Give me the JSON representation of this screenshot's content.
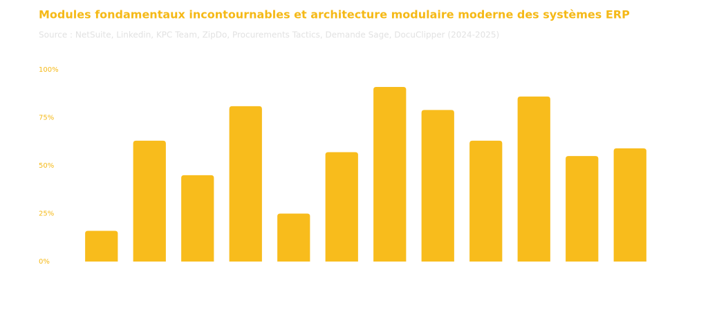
{
  "chart_data": {
    "type": "bar",
    "title": "Modules fondamentaux incontournables et architecture modulaire moderne des systèmes ERP",
    "subtitle": "Source : NetSuite, Linkedin, KPC Team, ZipDo, Procurements Tactics, Demande Sage, DocuClipper (2024-2025)",
    "categories": [
      null,
      null,
      null,
      null,
      null,
      null,
      null,
      null,
      null,
      null,
      null,
      null
    ],
    "values": [
      16,
      63,
      45,
      81,
      25,
      57,
      91,
      79,
      63,
      86,
      55,
      59
    ],
    "color": "#f8bc1c",
    "ylim": [
      0,
      100
    ],
    "yticks": [
      {
        "value": 0,
        "label": "0%"
      },
      {
        "value": 25,
        "label": "25%"
      },
      {
        "value": 50,
        "label": "50%"
      },
      {
        "value": 75,
        "label": "75%"
      },
      {
        "value": 100,
        "label": "100%"
      }
    ],
    "grid": false
  }
}
